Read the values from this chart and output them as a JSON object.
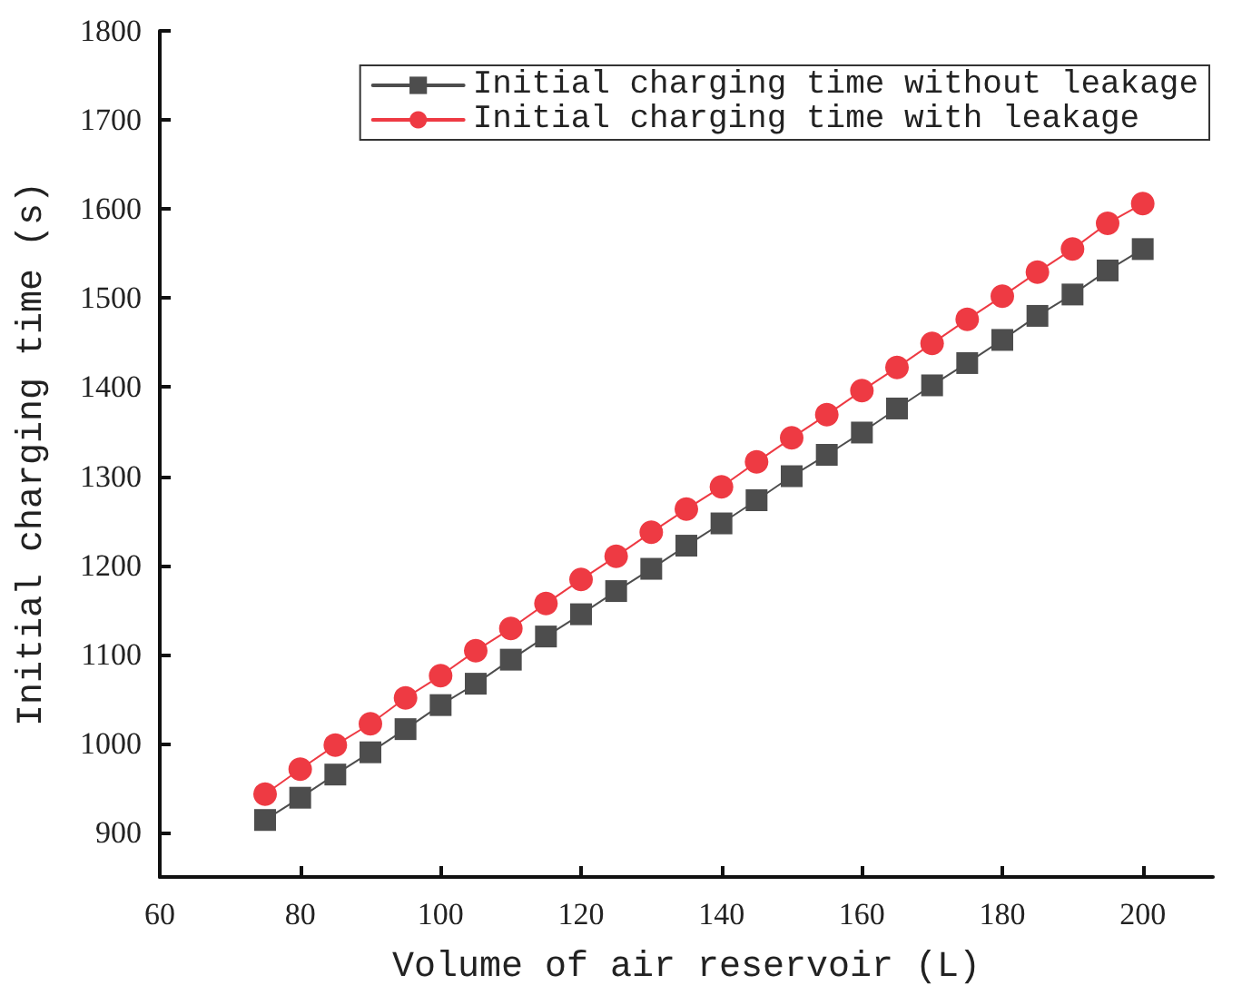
{
  "chart_data": {
    "type": "line",
    "xlabel": "Volume of air reservoir (L)",
    "ylabel": "Initial charging time (s)",
    "x": [
      75,
      80,
      85,
      90,
      95,
      100,
      105,
      110,
      115,
      120,
      125,
      130,
      135,
      140,
      145,
      150,
      155,
      160,
      165,
      170,
      175,
      180,
      185,
      190,
      195,
      200
    ],
    "series": [
      {
        "name": "Initial charging time without leakage",
        "color": "#4d4d4d",
        "marker": "square",
        "values": [
          914,
          939,
          965,
          990,
          1016,
          1043,
          1067,
          1094,
          1120,
          1145,
          1171,
          1196,
          1222,
          1247,
          1273,
          1300,
          1324,
          1349,
          1376,
          1402,
          1427,
          1453,
          1480,
          1504,
          1531,
          1555
        ]
      },
      {
        "name": "Initial charging time with leakage",
        "color": "#ee3a43",
        "marker": "circle",
        "values": [
          943,
          971,
          998,
          1022,
          1051,
          1076,
          1104,
          1129,
          1157,
          1184,
          1210,
          1237,
          1263,
          1288,
          1316,
          1343,
          1369,
          1396,
          1422,
          1449,
          1476,
          1502,
          1529,
          1555,
          1584,
          1606
        ]
      }
    ],
    "xlim": [
      60,
      210
    ],
    "xticks": [
      60,
      80,
      100,
      120,
      140,
      160,
      180,
      200
    ],
    "ylim": [
      850,
      1800
    ],
    "yticks": [
      900,
      1000,
      1100,
      1200,
      1300,
      1400,
      1500,
      1600,
      1700,
      1800
    ],
    "grid": false,
    "legend": "top right",
    "line_style": "solid"
  }
}
